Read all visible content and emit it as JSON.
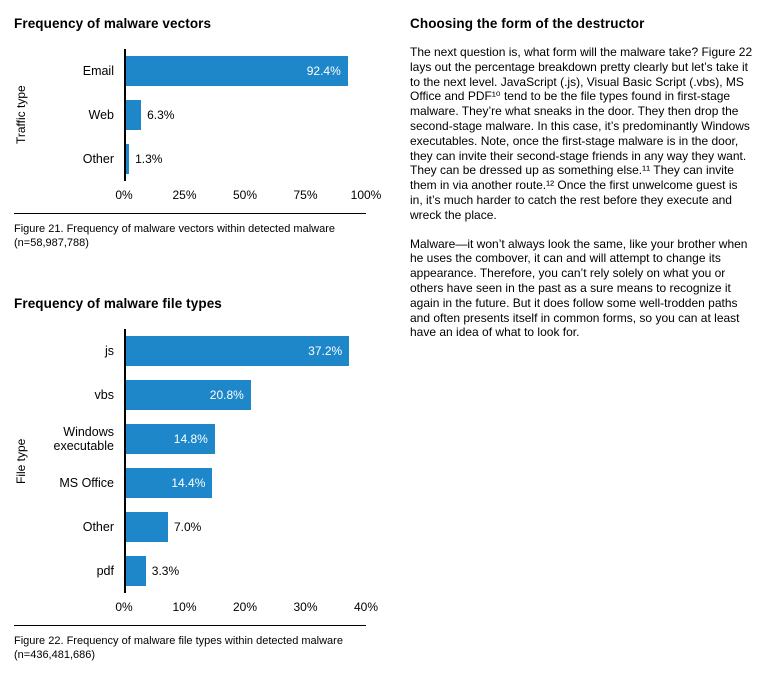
{
  "right_column": {
    "heading": "Choosing the form of the destructor",
    "paragraphs": [
      "The next question is, what form will the malware take? Figure 22 lays out the percentage breakdown pretty clearly but let’s take it to the next level. JavaScript (.js), Visual Basic Script (.vbs), MS Office and PDF¹⁰ tend to be the file types found in first-stage malware. They’re what sneaks in the door. They then drop the second-stage malware. In this case, it’s predominantly Windows executables. Note, once the first-stage malware is in the door, they can invite their second-stage friends in any way they want. They can be dressed up as something else.¹¹ They can invite them in via another route.¹² Once the first unwelcome guest is in, it’s much harder to catch the rest before they execute and wreck the place.",
      "Malware—it won’t always look the same, like your brother when he uses the combover, it can and will attempt to change its appearance. Therefore, you can’t rely solely on what you or others have seen in the past as a sure means to recognize it again in the future. But it does follow some well-trodden paths and often presents itself in common forms, so you can at least have an idea of what to look for."
    ]
  },
  "chart_data": [
    {
      "type": "bar",
      "orientation": "horizontal",
      "title": "Frequency of malware vectors",
      "ylabel": "Traffic type",
      "categories": [
        "Email",
        "Web",
        "Other"
      ],
      "values": [
        92.4,
        6.3,
        1.3
      ],
      "value_labels": [
        "92.4%",
        "6.3%",
        "1.3%"
      ],
      "xlim": [
        0,
        100
      ],
      "xticks": [
        0,
        25,
        50,
        75,
        100
      ],
      "bar_color": "#1d87c9",
      "grid": "off",
      "caption": "Figure 21. Frequency of malware vectors within detected malware (n=58,987,788)"
    },
    {
      "type": "bar",
      "orientation": "horizontal",
      "title": "Frequency of malware file types",
      "ylabel": "File type",
      "categories": [
        "js",
        "vbs",
        "Windows executable",
        "MS Office",
        "Other",
        "pdf"
      ],
      "values": [
        37.2,
        20.8,
        14.8,
        14.4,
        7.0,
        3.3
      ],
      "value_labels": [
        "37.2%",
        "20.8%",
        "14.8%",
        "14.4%",
        "7.0%",
        "3.3%"
      ],
      "xlim": [
        0,
        40
      ],
      "xticks": [
        0,
        10,
        20,
        30,
        40
      ],
      "bar_color": "#1d87c9",
      "grid": "off",
      "caption": "Figure 22. Frequency of malware file types within detected malware (n=436,481,686)"
    }
  ]
}
